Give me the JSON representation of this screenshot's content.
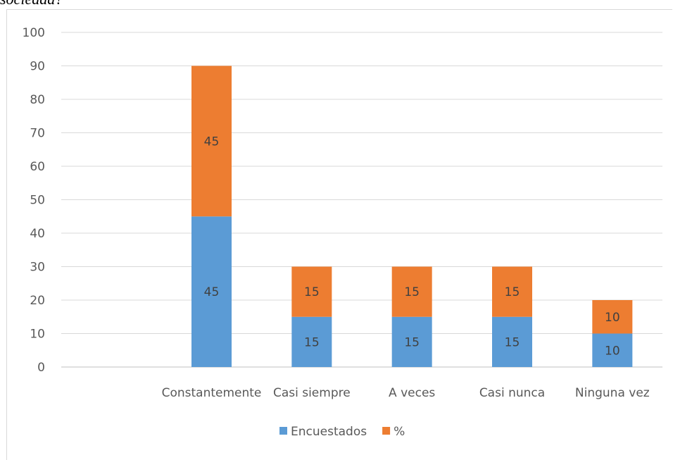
{
  "caption": "sociedad?",
  "chart_data": {
    "type": "bar",
    "stacked": true,
    "categories": [
      "",
      "Constantemente",
      "Casi siempre",
      "A veces",
      "Casi nunca",
      "Ninguna vez"
    ],
    "series": [
      {
        "name": "Encuestados",
        "color": "#5b9bd5",
        "values": [
          null,
          45,
          15,
          15,
          15,
          10
        ]
      },
      {
        "name": "%",
        "color": "#ed7d31",
        "values": [
          null,
          45,
          15,
          15,
          15,
          10
        ]
      }
    ],
    "ylim": [
      0,
      100
    ],
    "yticks": [
      0,
      10,
      20,
      30,
      40,
      50,
      60,
      70,
      80,
      90,
      100
    ],
    "grid": true,
    "legend": "bottom",
    "data_labels": true,
    "title": "",
    "xlabel": "",
    "ylabel": ""
  }
}
